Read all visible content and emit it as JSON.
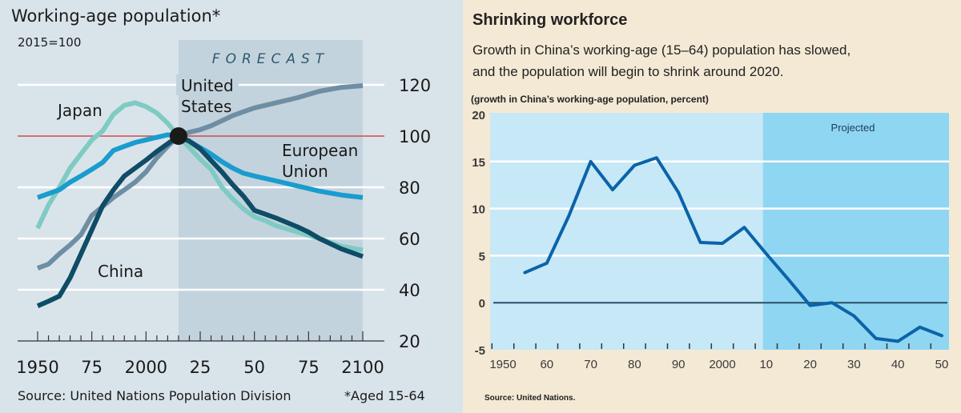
{
  "chart_data": [
    {
      "type": "line",
      "title": "Working-age population*",
      "subtitle": "2015=100",
      "annotation": "FORECAST",
      "forecast_range": [
        2015,
        2100
      ],
      "xlabel": "",
      "ylabel": "",
      "xlim": [
        1950,
        2100
      ],
      "ylim": [
        20,
        120
      ],
      "x_tick_labels": [
        "1950",
        "75",
        "2000",
        "25",
        "50",
        "75",
        "2100"
      ],
      "x_tick_values": [
        1950,
        1975,
        2000,
        2025,
        2050,
        2075,
        2100
      ],
      "y_ticks": [
        20,
        40,
        60,
        80,
        100,
        120
      ],
      "reference_line": 100,
      "reference_point": [
        2015,
        100
      ],
      "grid": true,
      "series": [
        {
          "name": "Japan",
          "label": "Japan",
          "color": "#7fcbc4",
          "x": [
            1950,
            1955,
            1960,
            1965,
            1970,
            1975,
            1980,
            1985,
            1990,
            1995,
            2000,
            2005,
            2010,
            2015,
            2020,
            2025,
            2030,
            2035,
            2040,
            2045,
            2050,
            2055,
            2060,
            2070,
            2080,
            2090,
            2100
          ],
          "y": [
            64,
            73,
            80,
            87.5,
            93,
            98.5,
            102,
            108.5,
            112,
            113,
            111.5,
            109,
            105,
            100,
            95.5,
            91,
            87,
            80,
            75.5,
            71.5,
            68.5,
            67,
            65,
            62.5,
            60,
            57,
            55.5
          ]
        },
        {
          "name": "European Union",
          "label": "European Union",
          "color": "#1a9ccf",
          "x": [
            1950,
            1955,
            1960,
            1965,
            1970,
            1975,
            1980,
            1985,
            1990,
            1995,
            2000,
            2005,
            2010,
            2015,
            2020,
            2025,
            2030,
            2035,
            2040,
            2045,
            2050,
            2060,
            2070,
            2080,
            2090,
            2100
          ],
          "y": [
            76,
            77.5,
            79,
            82,
            84.4,
            87,
            89.7,
            94.4,
            96,
            97.5,
            98.5,
            99.5,
            100.5,
            100,
            98,
            95.5,
            93,
            90,
            87.5,
            85.5,
            84.4,
            82.5,
            80.5,
            78.5,
            77,
            76
          ]
        },
        {
          "name": "United States",
          "label": "United States",
          "color": "#6e8ea3",
          "x": [
            1950,
            1955,
            1960,
            1965,
            1970,
            1975,
            1980,
            1985,
            1990,
            1995,
            2000,
            2005,
            2010,
            2015,
            2020,
            2025,
            2030,
            2035,
            2040,
            2045,
            2050,
            2060,
            2070,
            2080,
            2090,
            2100
          ],
          "y": [
            48.4,
            50,
            54,
            57.5,
            61.5,
            69,
            72.5,
            76,
            79,
            82,
            86,
            91.5,
            96,
            100,
            101.5,
            102.5,
            104,
            106,
            108,
            109.5,
            111,
            113,
            115,
            117.5,
            119,
            119.7
          ]
        },
        {
          "name": "China",
          "label": "China",
          "color": "#0f4c66",
          "x": [
            1950,
            1955,
            1960,
            1965,
            1970,
            1975,
            1980,
            1985,
            1990,
            1995,
            2000,
            2005,
            2010,
            2015,
            2020,
            2025,
            2030,
            2035,
            2040,
            2045,
            2050,
            2055,
            2060,
            2070,
            2075,
            2080,
            2090,
            2100
          ],
          "y": [
            33.7,
            35.5,
            37.5,
            44.7,
            54,
            63.4,
            72.8,
            79,
            84.4,
            87.5,
            90.6,
            94,
            97,
            100,
            98,
            95,
            90.5,
            86,
            81,
            76.5,
            71,
            69.5,
            68,
            64.5,
            62.5,
            60,
            56,
            53
          ]
        }
      ],
      "source": "Source: United Nations Population Division",
      "footnote": "*Aged 15-64"
    },
    {
      "type": "line",
      "title": "Shrinking workforce",
      "subtitle": "Growth in China’s working-age (15–64) population has slowed, and the population will begin to shrink around 2020.",
      "subtitle_lines": [
        "Growth in China’s working-age (15–64) population has slowed,",
        "and the population will begin to shrink around 2020."
      ],
      "ylabel": "(growth in China’s working-age population, percent)",
      "xlabel": "",
      "annotation": "Projected",
      "projected_from": 2010,
      "xlim": [
        1950,
        2050
      ],
      "ylim": [
        -5,
        20
      ],
      "y_ticks": [
        -5,
        0,
        5,
        10,
        15,
        20
      ],
      "x_tick_labels": [
        "1950",
        "60",
        "70",
        "80",
        "90",
        "2000",
        "10",
        "20",
        "30",
        "40",
        "50"
      ],
      "x_tick_values": [
        1950,
        1960,
        1970,
        1980,
        1990,
        2000,
        2010,
        2020,
        2030,
        2040,
        2050
      ],
      "grid": true,
      "series": [
        {
          "name": "China working-age population growth",
          "color": "#0b63a8",
          "x": [
            1955,
            1960,
            1965,
            1970,
            1975,
            1980,
            1985,
            1990,
            1995,
            2000,
            2005,
            2010,
            2015,
            2020,
            2025,
            2030,
            2035,
            2040,
            2045,
            2050
          ],
          "y": [
            3.2,
            4.2,
            9.2,
            15.0,
            12.0,
            14.6,
            15.4,
            11.7,
            6.4,
            6.3,
            8.0,
            5.2,
            2.5,
            -0.3,
            0.0,
            -1.4,
            -3.8,
            -4.1,
            -2.6,
            -3.5
          ]
        }
      ],
      "source": "Source: United Nations."
    }
  ]
}
